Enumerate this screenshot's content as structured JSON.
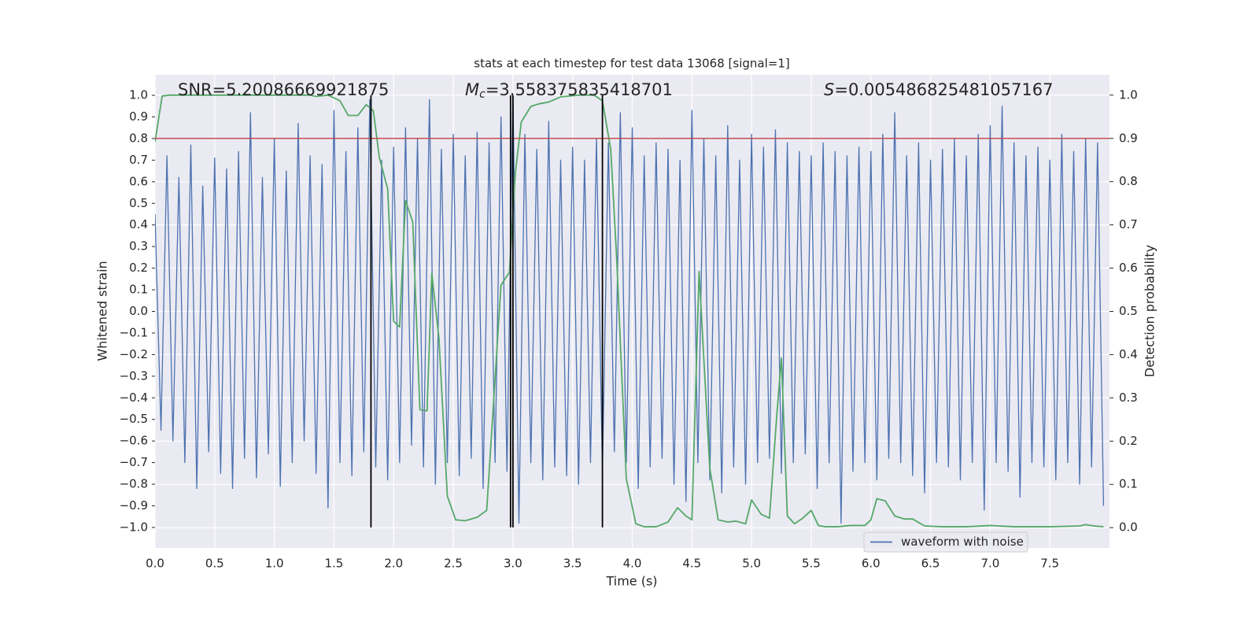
{
  "chart_data": {
    "type": "line",
    "title": "stats at each timestep for test data 13068 [signal=1]",
    "x_label": "Time (s)",
    "y_label": "Whitened strain",
    "y2_label": "Detection probability",
    "annotations": [
      {
        "text": "SNR=5.20086669921875"
      },
      {
        "symbol": "M",
        "subscript": "c",
        "text": "=3.558375835418701"
      },
      {
        "symbol": "S",
        "text": "=0.005486825481057167"
      }
    ],
    "xlim": [
      0,
      8.0
    ],
    "ylim": [
      -1.095,
      1.095
    ],
    "y2lim": [
      -0.047,
      1.047
    ],
    "xticks": [
      {
        "value": 0,
        "label": "0.0"
      },
      {
        "value": 0.5,
        "label": "0.5"
      },
      {
        "value": 1,
        "label": "1.0"
      },
      {
        "value": 1.5,
        "label": "1.5"
      },
      {
        "value": 2,
        "label": "2.0"
      },
      {
        "value": 2.5,
        "label": "2.5"
      },
      {
        "value": 3,
        "label": "3.0"
      },
      {
        "value": 3.5,
        "label": "3.5"
      },
      {
        "value": 4,
        "label": "4.0"
      },
      {
        "value": 4.5,
        "label": "4.5"
      },
      {
        "value": 5,
        "label": "5.0"
      },
      {
        "value": 5.5,
        "label": "5.5"
      },
      {
        "value": 6,
        "label": "6.0"
      },
      {
        "value": 6.5,
        "label": "6.5"
      },
      {
        "value": 7,
        "label": "7.0"
      },
      {
        "value": 7.5,
        "label": "7.5"
      }
    ],
    "yticks": [
      {
        "value": 1,
        "label": "1.0"
      },
      {
        "value": 0.9,
        "label": "0.9"
      },
      {
        "value": 0.8,
        "label": "0.8"
      },
      {
        "value": 0.7,
        "label": "0.7"
      },
      {
        "value": 0.6,
        "label": "0.6"
      },
      {
        "value": 0.5,
        "label": "0.5"
      },
      {
        "value": 0.4,
        "label": "0.4"
      },
      {
        "value": 0.3,
        "label": "0.3"
      },
      {
        "value": 0.2,
        "label": "0.2"
      },
      {
        "value": 0.1,
        "label": "0.1"
      },
      {
        "value": 0,
        "label": "0.0"
      },
      {
        "value": -0.1,
        "label": "−0.1"
      },
      {
        "value": -0.2,
        "label": "−0.2"
      },
      {
        "value": -0.3,
        "label": "−0.3"
      },
      {
        "value": -0.4,
        "label": "−0.4"
      },
      {
        "value": -0.5,
        "label": "−0.5"
      },
      {
        "value": -0.6,
        "label": "−0.6"
      },
      {
        "value": -0.7,
        "label": "−0.7"
      },
      {
        "value": -0.8,
        "label": "−0.8"
      },
      {
        "value": -0.9,
        "label": "−0.9"
      },
      {
        "value": -1,
        "label": "−1.0"
      }
    ],
    "y2ticks": [
      {
        "value": 1,
        "label": "1.0"
      },
      {
        "value": 0.9,
        "label": "0.9"
      },
      {
        "value": 0.8,
        "label": "0.8"
      },
      {
        "value": 0.7,
        "label": "0.7"
      },
      {
        "value": 0.6,
        "label": "0.6"
      },
      {
        "value": 0.5,
        "label": "0.5"
      },
      {
        "value": 0.4,
        "label": "0.4"
      },
      {
        "value": 0.3,
        "label": "0.3"
      },
      {
        "value": 0.2,
        "label": "0.2"
      },
      {
        "value": 0.1,
        "label": "0.1"
      },
      {
        "value": 0,
        "label": "0.0"
      }
    ],
    "grid": true,
    "legend_loc": "lower right",
    "series": [
      {
        "name": "waveform with noise",
        "color": "#4c72b0",
        "x": [
          0,
          0.05,
          0.1,
          0.15,
          0.2,
          0.25,
          0.3,
          0.35,
          0.4,
          0.45,
          0.5,
          0.55,
          0.6,
          0.65,
          0.7,
          0.75,
          0.8,
          0.85,
          0.9,
          0.95,
          1,
          1.05,
          1.1,
          1.15,
          1.2,
          1.25,
          1.3,
          1.35,
          1.4,
          1.45,
          1.5,
          1.55,
          1.6,
          1.65,
          1.7,
          1.75,
          1.8,
          1.85,
          1.9,
          1.95,
          2,
          2.05,
          2.1,
          2.15,
          2.2,
          2.25,
          2.3,
          2.35,
          2.4,
          2.45,
          2.5,
          2.55,
          2.6,
          2.65,
          2.7,
          2.75,
          2.8,
          2.85,
          2.9,
          2.95,
          3,
          3.05,
          3.1,
          3.15,
          3.2,
          3.25,
          3.3,
          3.35,
          3.4,
          3.45,
          3.5,
          3.55,
          3.6,
          3.65,
          3.7,
          3.75,
          3.8,
          3.85,
          3.9,
          3.95,
          4,
          4.05,
          4.1,
          4.15,
          4.2,
          4.25,
          4.3,
          4.35,
          4.4,
          4.45,
          4.5,
          4.55,
          4.6,
          4.65,
          4.7,
          4.75,
          4.8,
          4.85,
          4.9,
          4.95,
          5,
          5.05,
          5.1,
          5.15,
          5.2,
          5.25,
          5.3,
          5.35,
          5.4,
          5.45,
          5.5,
          5.55,
          5.6,
          5.65,
          5.7,
          5.75,
          5.8,
          5.85,
          5.9,
          5.95,
          6,
          6.05,
          6.1,
          6.15,
          6.2,
          6.25,
          6.3,
          6.35,
          6.4,
          6.45,
          6.5,
          6.55,
          6.6,
          6.65,
          6.7,
          6.75,
          6.8,
          6.85,
          6.9,
          6.95,
          7,
          7.05,
          7.1,
          7.15,
          7.2,
          7.25,
          7.3,
          7.35,
          7.4,
          7.45,
          7.5,
          7.55,
          7.6,
          7.65,
          7.7,
          7.75,
          7.8,
          7.85,
          7.9,
          7.95
        ],
        "values": [
          0.45,
          -0.55,
          0.72,
          -0.6,
          0.62,
          -0.7,
          0.77,
          -0.82,
          0.58,
          -0.65,
          0.71,
          -0.75,
          0.66,
          -0.82,
          0.74,
          -0.68,
          0.92,
          -0.77,
          0.62,
          -0.66,
          0.8,
          -0.81,
          0.65,
          -0.7,
          0.87,
          -0.6,
          0.72,
          -0.75,
          0.68,
          -0.91,
          0.93,
          -0.7,
          0.74,
          -0.76,
          0.85,
          -0.65,
          0.98,
          -0.72,
          0.7,
          -0.78,
          0.76,
          -0.7,
          0.85,
          -0.62,
          0.8,
          -0.72,
          0.98,
          -0.8,
          0.75,
          -0.7,
          0.82,
          -0.76,
          0.72,
          -0.68,
          0.83,
          -0.82,
          0.78,
          -0.7,
          0.9,
          -0.74,
          1.0,
          -0.98,
          0.82,
          -0.7,
          0.75,
          -0.78,
          0.88,
          -0.72,
          0.7,
          -0.76,
          0.76,
          -0.8,
          0.7,
          -0.7,
          0.8,
          -0.74,
          0.78,
          -0.65,
          0.92,
          -0.7,
          0.85,
          -0.82,
          0.72,
          -0.72,
          0.78,
          -0.68,
          0.75,
          -0.8,
          0.7,
          -0.88,
          0.93,
          -0.7,
          0.8,
          -0.78,
          0.72,
          -0.84,
          0.86,
          -0.72,
          0.7,
          -0.8,
          0.82,
          -0.7,
          0.76,
          -0.68,
          0.84,
          -0.75,
          0.78,
          -0.7,
          0.74,
          -0.66,
          0.72,
          -0.82,
          0.78,
          -0.7,
          0.74,
          -0.98,
          0.72,
          -0.74,
          0.76,
          -0.7,
          0.74,
          -0.78,
          0.82,
          -0.68,
          0.92,
          -0.7,
          0.72,
          -0.76,
          0.78,
          -0.84,
          0.7,
          -0.7,
          0.75,
          -0.72,
          0.8,
          -0.78,
          0.72,
          -0.7,
          0.82,
          -0.92,
          0.86,
          -0.7,
          0.95,
          -0.74,
          0.78,
          -0.86,
          0.72,
          -0.7,
          0.76,
          -0.72,
          0.7,
          -0.78,
          0.82,
          -0.7,
          0.74,
          -0.8,
          0.8,
          -0.72,
          0.78,
          -0.9
        ]
      },
      {
        "color": "#55a868",
        "axis": "y2",
        "x": [
          0,
          0.06,
          0.12,
          0.5,
          1,
          1.3,
          1.35,
          1.45,
          1.55,
          1.62,
          1.7,
          1.77,
          1.83,
          1.88,
          1.95,
          2,
          2.05,
          2.1,
          2.16,
          2.22,
          2.28,
          2.32,
          2.38,
          2.45,
          2.52,
          2.6,
          2.7,
          2.78,
          2.9,
          2.97,
          3.02,
          3.07,
          3.15,
          3.22,
          3.3,
          3.4,
          3.55,
          3.68,
          3.75,
          3.82,
          3.87,
          3.95,
          4.03,
          4.1,
          4.2,
          4.3,
          4.38,
          4.45,
          4.5,
          4.56,
          4.65,
          4.72,
          4.8,
          4.87,
          4.95,
          5,
          5.08,
          5.15,
          5.21,
          5.25,
          5.3,
          5.36,
          5.43,
          5.5,
          5.56,
          5.62,
          5.72,
          5.83,
          5.95,
          6,
          6.05,
          6.12,
          6.2,
          6.28,
          6.35,
          6.45,
          6.6,
          6.8,
          7,
          7.2,
          7.5,
          7.75,
          7.8,
          7.87,
          7.95
        ],
        "values": [
          0.892,
          0.998,
          1.0,
          1.0,
          1.0,
          1.0,
          0.997,
          1.0,
          0.987,
          0.953,
          0.953,
          0.978,
          0.964,
          0.856,
          0.783,
          0.477,
          0.464,
          0.756,
          0.707,
          0.273,
          0.27,
          0.588,
          0.437,
          0.073,
          0.018,
          0.016,
          0.024,
          0.04,
          0.561,
          0.59,
          0.82,
          0.938,
          0.974,
          0.98,
          0.984,
          0.996,
          1.0,
          1.0,
          0.987,
          0.874,
          0.619,
          0.113,
          0.009,
          0.002,
          0.002,
          0.013,
          0.046,
          0.027,
          0.018,
          0.592,
          0.137,
          0.018,
          0.013,
          0.015,
          0.009,
          0.064,
          0.031,
          0.022,
          0.255,
          0.392,
          0.027,
          0.009,
          0.022,
          0.04,
          0.005,
          0.002,
          0.002,
          0.005,
          0.005,
          0.018,
          0.067,
          0.062,
          0.027,
          0.02,
          0.02,
          0.004,
          0.002,
          0.002,
          0.005,
          0.002,
          0.002,
          0.004,
          0.007,
          0.004,
          0.002
        ]
      }
    ],
    "threshold": {
      "value": 0.9,
      "axis": "y2",
      "color": "#c44e52"
    },
    "vlines": {
      "x": [
        1.81,
        2.98,
        3.0,
        3.75
      ],
      "ymin": -1,
      "ymax": 1,
      "color": "#000000"
    }
  }
}
